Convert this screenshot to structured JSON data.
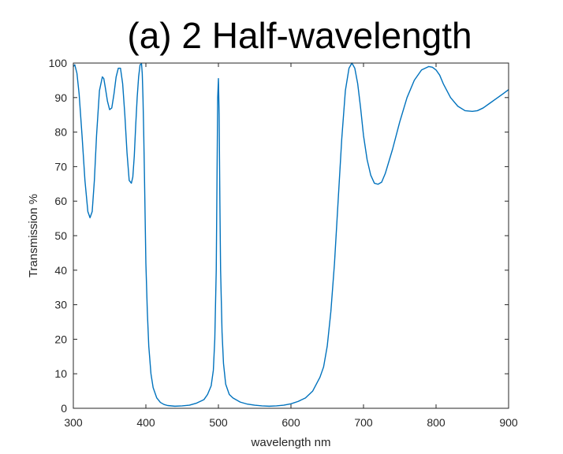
{
  "title": "(a) 2 Half-wavelength",
  "chart_data": {
    "type": "line",
    "title": "(a) 2 Half-wavelength",
    "xlabel": "wavelength nm",
    "ylabel": "Transmission %",
    "xlim": [
      300,
      900
    ],
    "ylim": [
      0,
      100
    ],
    "xticks": [
      "300",
      "400",
      "500",
      "600",
      "700",
      "800",
      "900"
    ],
    "yticks": [
      "0",
      "10",
      "20",
      "30",
      "40",
      "50",
      "60",
      "70",
      "80",
      "90",
      "100"
    ],
    "grid": false,
    "legend": "none",
    "series": [
      {
        "color": "#0072BD",
        "x": [
          300,
          302,
          305,
          308,
          312,
          316,
          320,
          323,
          326,
          329,
          332,
          336,
          340,
          342,
          344,
          347,
          350,
          353,
          356,
          359,
          362,
          365,
          368,
          371,
          374,
          377,
          380,
          382,
          384,
          386,
          388,
          390,
          392,
          394,
          395,
          396,
          397,
          398,
          399,
          400,
          402,
          404,
          407,
          410,
          415,
          420,
          425,
          430,
          440,
          450,
          460,
          470,
          480,
          485,
          490,
          493,
          495,
          497,
          498,
          499,
          500,
          501,
          502,
          503,
          505,
          507,
          510,
          515,
          520,
          530,
          540,
          550,
          560,
          570,
          580,
          590,
          600,
          610,
          620,
          630,
          640,
          645,
          650,
          655,
          660,
          665,
          670,
          675,
          680,
          684,
          688,
          692,
          696,
          700,
          705,
          710,
          715,
          720,
          725,
          730,
          740,
          750,
          760,
          770,
          780,
          790,
          795,
          800,
          805,
          810,
          820,
          830,
          840,
          850,
          857,
          865,
          875,
          885,
          895,
          900
        ],
        "y": [
          99,
          99.5,
          97,
          91,
          79,
          66,
          57,
          55.2,
          57,
          66,
          79,
          92,
          96,
          95.5,
          93,
          89,
          86.5,
          87,
          91,
          96,
          98.5,
          98.5,
          94,
          85,
          74,
          66,
          65.2,
          67,
          73,
          82,
          90,
          96,
          99.5,
          99.8,
          97,
          90,
          80,
          68,
          55,
          42,
          28,
          18,
          10,
          6,
          3,
          1.7,
          1.1,
          0.8,
          0.6,
          0.7,
          0.9,
          1.5,
          2.5,
          4,
          6.5,
          11,
          20,
          40,
          65,
          90,
          95.5,
          85,
          60,
          40,
          22,
          13,
          7,
          4,
          3,
          1.8,
          1.2,
          0.9,
          0.7,
          0.6,
          0.7,
          0.9,
          1.3,
          2,
          3,
          5,
          9,
          12,
          18,
          28,
          42,
          60,
          78,
          92,
          98.5,
          100,
          98.5,
          94,
          87,
          79,
          72,
          67.5,
          65.2,
          64.9,
          65.5,
          68,
          75,
          83,
          90,
          95,
          98,
          99,
          98.8,
          98,
          96.5,
          94,
          90,
          87.5,
          86.2,
          86,
          86.2,
          87,
          88.5,
          90,
          91.5,
          92.3
        ]
      }
    ]
  }
}
